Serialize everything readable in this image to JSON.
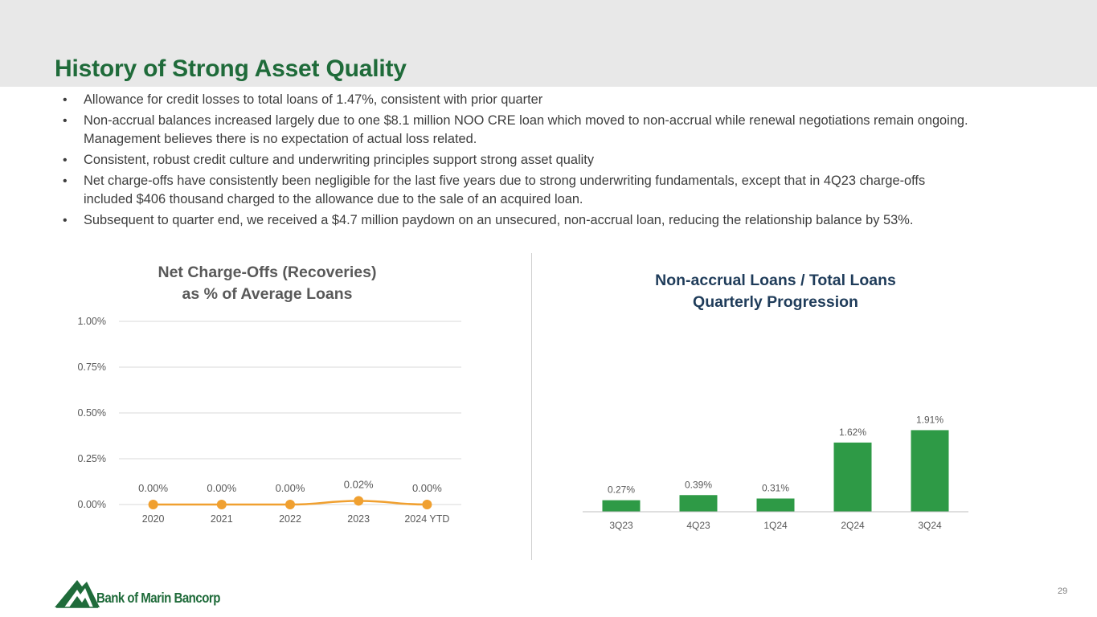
{
  "title": "History of Strong Asset Quality",
  "bullets": [
    "Allowance for credit losses to total loans of 1.47%, consistent with prior quarter",
    "Non-accrual balances increased largely due to one $8.1 million NOO CRE loan which moved to non-accrual while renewal negotiations remain ongoing. Management believes there is no expectation of actual loss related.",
    "Consistent, robust credit culture and underwriting principles support strong asset quality",
    "Net charge-offs have consistently been negligible for the last five years due to strong underwriting fundamentals, except that in 4Q23 charge-offs included $406 thousand charged to the allowance due to the sale of an acquired loan.",
    "Subsequent to quarter end, we received a $4.7 million paydown on an unsecured, non-accrual loan, reducing the relationship balance by 53%."
  ],
  "bullet_symbol": "•",
  "colors": {
    "title_green": "#1f6b3a",
    "line_orange": "#f0a030",
    "bar_green": "#2e9a46",
    "grid": "#d9d9d9",
    "right_title_navy": "#1f3c5a"
  },
  "chart_data": [
    {
      "type": "line",
      "title_lines": [
        "Net Charge-Offs (Recoveries)",
        "as % of Average Loans"
      ],
      "categories": [
        "2020",
        "2021",
        "2022",
        "2023",
        "2024 YTD"
      ],
      "values": [
        0.0,
        0.0,
        0.0,
        0.02,
        0.0
      ],
      "data_labels": [
        "0.00%",
        "0.00%",
        "0.00%",
        "0.02%",
        "0.00%"
      ],
      "y_ticks": [
        "0.00%",
        "0.25%",
        "0.50%",
        "0.75%",
        "1.00%"
      ],
      "y_tick_values": [
        0,
        0.25,
        0.5,
        0.75,
        1.0
      ],
      "ylim": [
        0,
        1.0
      ],
      "grid": true,
      "legend": "none"
    },
    {
      "type": "bar",
      "title_lines": [
        "Non-accrual Loans / Total Loans",
        "Quarterly Progression"
      ],
      "categories": [
        "3Q23",
        "4Q23",
        "1Q24",
        "2Q24",
        "3Q24"
      ],
      "values": [
        0.27,
        0.39,
        0.31,
        1.62,
        1.91
      ],
      "data_labels": [
        "0.27%",
        "0.39%",
        "0.31%",
        "1.62%",
        "1.91%"
      ],
      "ylim": [
        0,
        2.2
      ],
      "grid": false,
      "legend": "none"
    }
  ],
  "logo": {
    "text": "Bank of Marin Bancorp"
  },
  "page_number": "29"
}
